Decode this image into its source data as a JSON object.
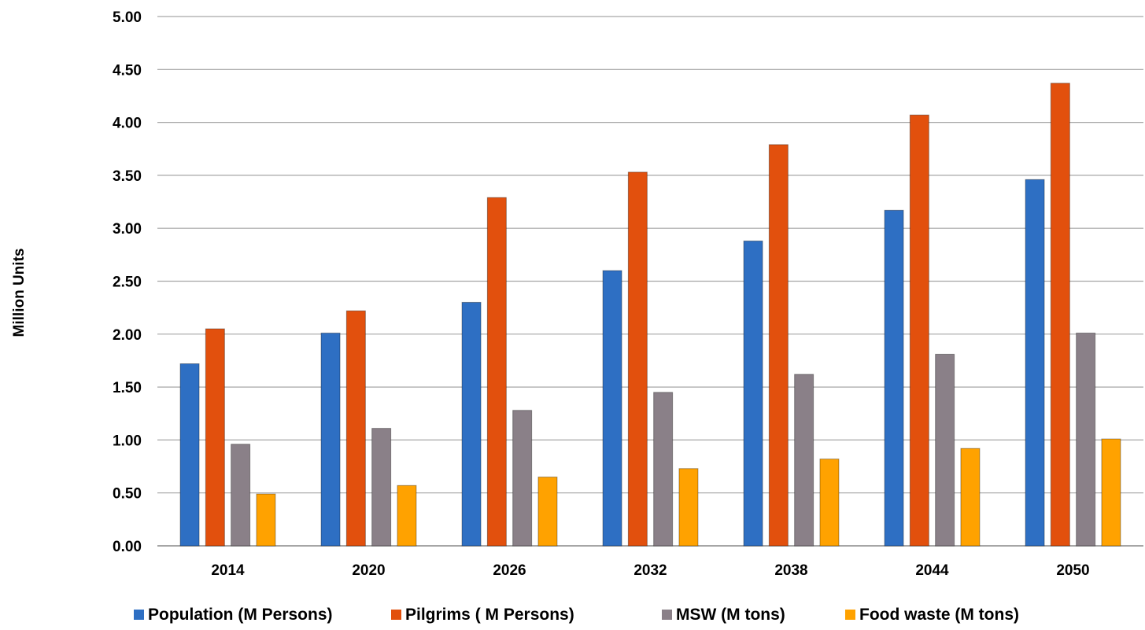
{
  "chart_data": {
    "type": "bar",
    "title": "",
    "xlabel": "",
    "ylabel": "Million Units",
    "ylim": [
      0,
      5
    ],
    "yticks": [
      "0.00",
      "0.50",
      "1.00",
      "1.50",
      "2.00",
      "2.50",
      "3.00",
      "3.50",
      "4.00",
      "4.50",
      "5.00"
    ],
    "grid": true,
    "legend_position": "bottom",
    "categories": [
      "2014",
      "2020",
      "2026",
      "2032",
      "2038",
      "2044",
      "2050"
    ],
    "series": [
      {
        "name": "Population (M Persons)",
        "color": "#2e6fc3",
        "values": [
          1.72,
          2.01,
          2.3,
          2.6,
          2.88,
          3.17,
          3.46
        ]
      },
      {
        "name": "Pilgrims ( M Persons)",
        "color": "#e2500d",
        "values": [
          2.05,
          2.22,
          3.29,
          3.53,
          3.79,
          4.07,
          4.37
        ]
      },
      {
        "name": "MSW (M tons)",
        "color": "#8a8088",
        "values": [
          0.96,
          1.11,
          1.28,
          1.45,
          1.62,
          1.81,
          2.01
        ]
      },
      {
        "name": "Food waste (M tons)",
        "color": "#ffa200",
        "values": [
          0.49,
          0.57,
          0.65,
          0.73,
          0.82,
          0.92,
          1.01
        ]
      }
    ]
  }
}
